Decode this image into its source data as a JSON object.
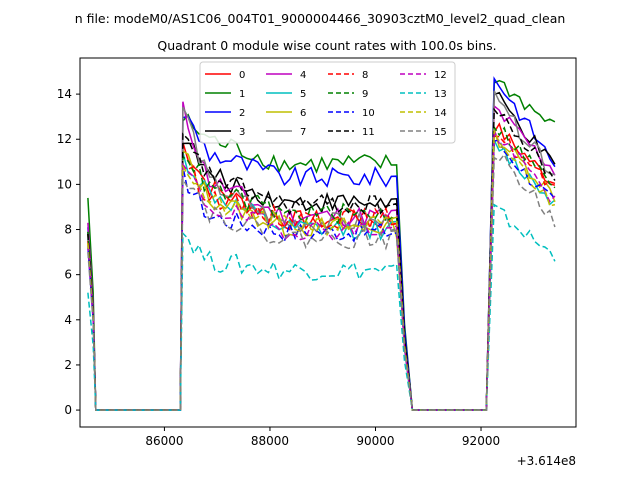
{
  "chart_data": {
    "type": "line",
    "suptitle": "n file: modeM0/AS1C06_004T01_9000004466_30903cztM0_level2_quad_clean",
    "title": "Quadrant 0 module wise count rates with 100.0s bins.",
    "xlabel": "",
    "ylabel": "",
    "offset_label": "+3.614e8",
    "xlim": [
      84400,
      93800
    ],
    "ylim": [
      -0.75,
      15.6
    ],
    "xticks": [
      86000,
      88000,
      90000,
      92000
    ],
    "xtick_labels": [
      "86000",
      "88000",
      "90000",
      "92000"
    ],
    "yticks": [
      0,
      2,
      4,
      6,
      8,
      10,
      12,
      14
    ],
    "ytick_labels": [
      "0",
      "2",
      "4",
      "6",
      "8",
      "10",
      "12",
      "14"
    ],
    "legend": {
      "placement": "upper-center",
      "columns": 4
    },
    "gap_segments": [
      [
        84700,
        86300
      ],
      [
        90700,
        92100
      ]
    ],
    "windows": [
      {
        "start": 84550,
        "edge": 84650,
        "drop_to": 84700
      },
      {
        "start": 86300,
        "rise": 86350,
        "end": 90400,
        "drop": 90550,
        "zero": 90700
      },
      {
        "start": 92100,
        "rise": 92250,
        "end": 93400
      }
    ],
    "series": [
      {
        "name": "0",
        "color": "#ff0000",
        "dash": "",
        "start": 7.8,
        "peak1": 11.8,
        "level1": 9.1,
        "end1": 8.4,
        "peak2": 12.6,
        "end2": 10.0
      },
      {
        "name": "1",
        "color": "#008000",
        "dash": "",
        "start": 9.4,
        "peak1": 12.9,
        "level1": 11.2,
        "end1": 10.9,
        "peak2": 14.7,
        "end2": 12.5
      },
      {
        "name": "2",
        "color": "#0000ff",
        "dash": "",
        "start": 8.1,
        "peak1": 13.2,
        "level1": 10.6,
        "end1": 10.3,
        "peak2": 14.8,
        "end2": 10.9
      },
      {
        "name": "3",
        "color": "#000000",
        "dash": "",
        "start": 7.9,
        "peak1": 12.2,
        "level1": 9.6,
        "end1": 9.2,
        "peak2": 14.0,
        "end2": 10.7
      },
      {
        "name": "4",
        "color": "#bf00bf",
        "dash": "",
        "start": 8.3,
        "peak1": 13.3,
        "level1": 9.4,
        "end1": 8.6,
        "peak2": 13.4,
        "end2": 10.6
      },
      {
        "name": "5",
        "color": "#00bfbf",
        "dash": "",
        "start": 7.6,
        "peak1": 11.2,
        "level1": 8.8,
        "end1": 8.0,
        "peak2": 11.8,
        "end2": 9.2
      },
      {
        "name": "6",
        "color": "#bfbf00",
        "dash": "",
        "start": 7.4,
        "peak1": 11.4,
        "level1": 8.6,
        "end1": 8.1,
        "peak2": 12.2,
        "end2": 9.5
      },
      {
        "name": "7",
        "color": "#808080",
        "dash": "",
        "start": 7.7,
        "peak1": 13.5,
        "level1": 9.3,
        "end1": 8.3,
        "peak2": 13.8,
        "end2": 10.4
      },
      {
        "name": "8",
        "color": "#ff0000",
        "dash": "6,3",
        "start": 7.5,
        "peak1": 11.0,
        "level1": 8.7,
        "end1": 8.5,
        "peak2": 12.4,
        "end2": 9.7
      },
      {
        "name": "9",
        "color": "#008000",
        "dash": "6,3",
        "start": 7.9,
        "peak1": 11.6,
        "level1": 9.0,
        "end1": 8.7,
        "peak2": 12.7,
        "end2": 9.9
      },
      {
        "name": "10",
        "color": "#0000ff",
        "dash": "6,3",
        "start": 7.2,
        "peak1": 10.4,
        "level1": 7.8,
        "end1": 7.9,
        "peak2": 12.0,
        "end2": 9.1
      },
      {
        "name": "11",
        "color": "#000000",
        "dash": "6,3",
        "start": 7.8,
        "peak1": 12.0,
        "level1": 9.6,
        "end1": 9.1,
        "peak2": 13.3,
        "end2": 10.3
      },
      {
        "name": "12",
        "color": "#bf00bf",
        "dash": "6,3",
        "start": 7.3,
        "peak1": 10.8,
        "level1": 8.2,
        "end1": 8.0,
        "peak2": 12.3,
        "end2": 9.3
      },
      {
        "name": "13",
        "color": "#00bfbf",
        "dash": "6,3",
        "start": 5.2,
        "peak1": 7.9,
        "level1": 5.8,
        "end1": 6.2,
        "peak2": 8.9,
        "end2": 6.8
      },
      {
        "name": "14",
        "color": "#bfbf00",
        "dash": "6,3",
        "start": 7.4,
        "peak1": 11.0,
        "level1": 8.4,
        "end1": 8.2,
        "peak2": 12.1,
        "end2": 9.0
      },
      {
        "name": "15",
        "color": "#808080",
        "dash": "6,3",
        "start": 7.0,
        "peak1": 10.6,
        "level1": 8.0,
        "end1": 7.6,
        "peak2": 11.5,
        "end2": 8.4
      }
    ]
  }
}
